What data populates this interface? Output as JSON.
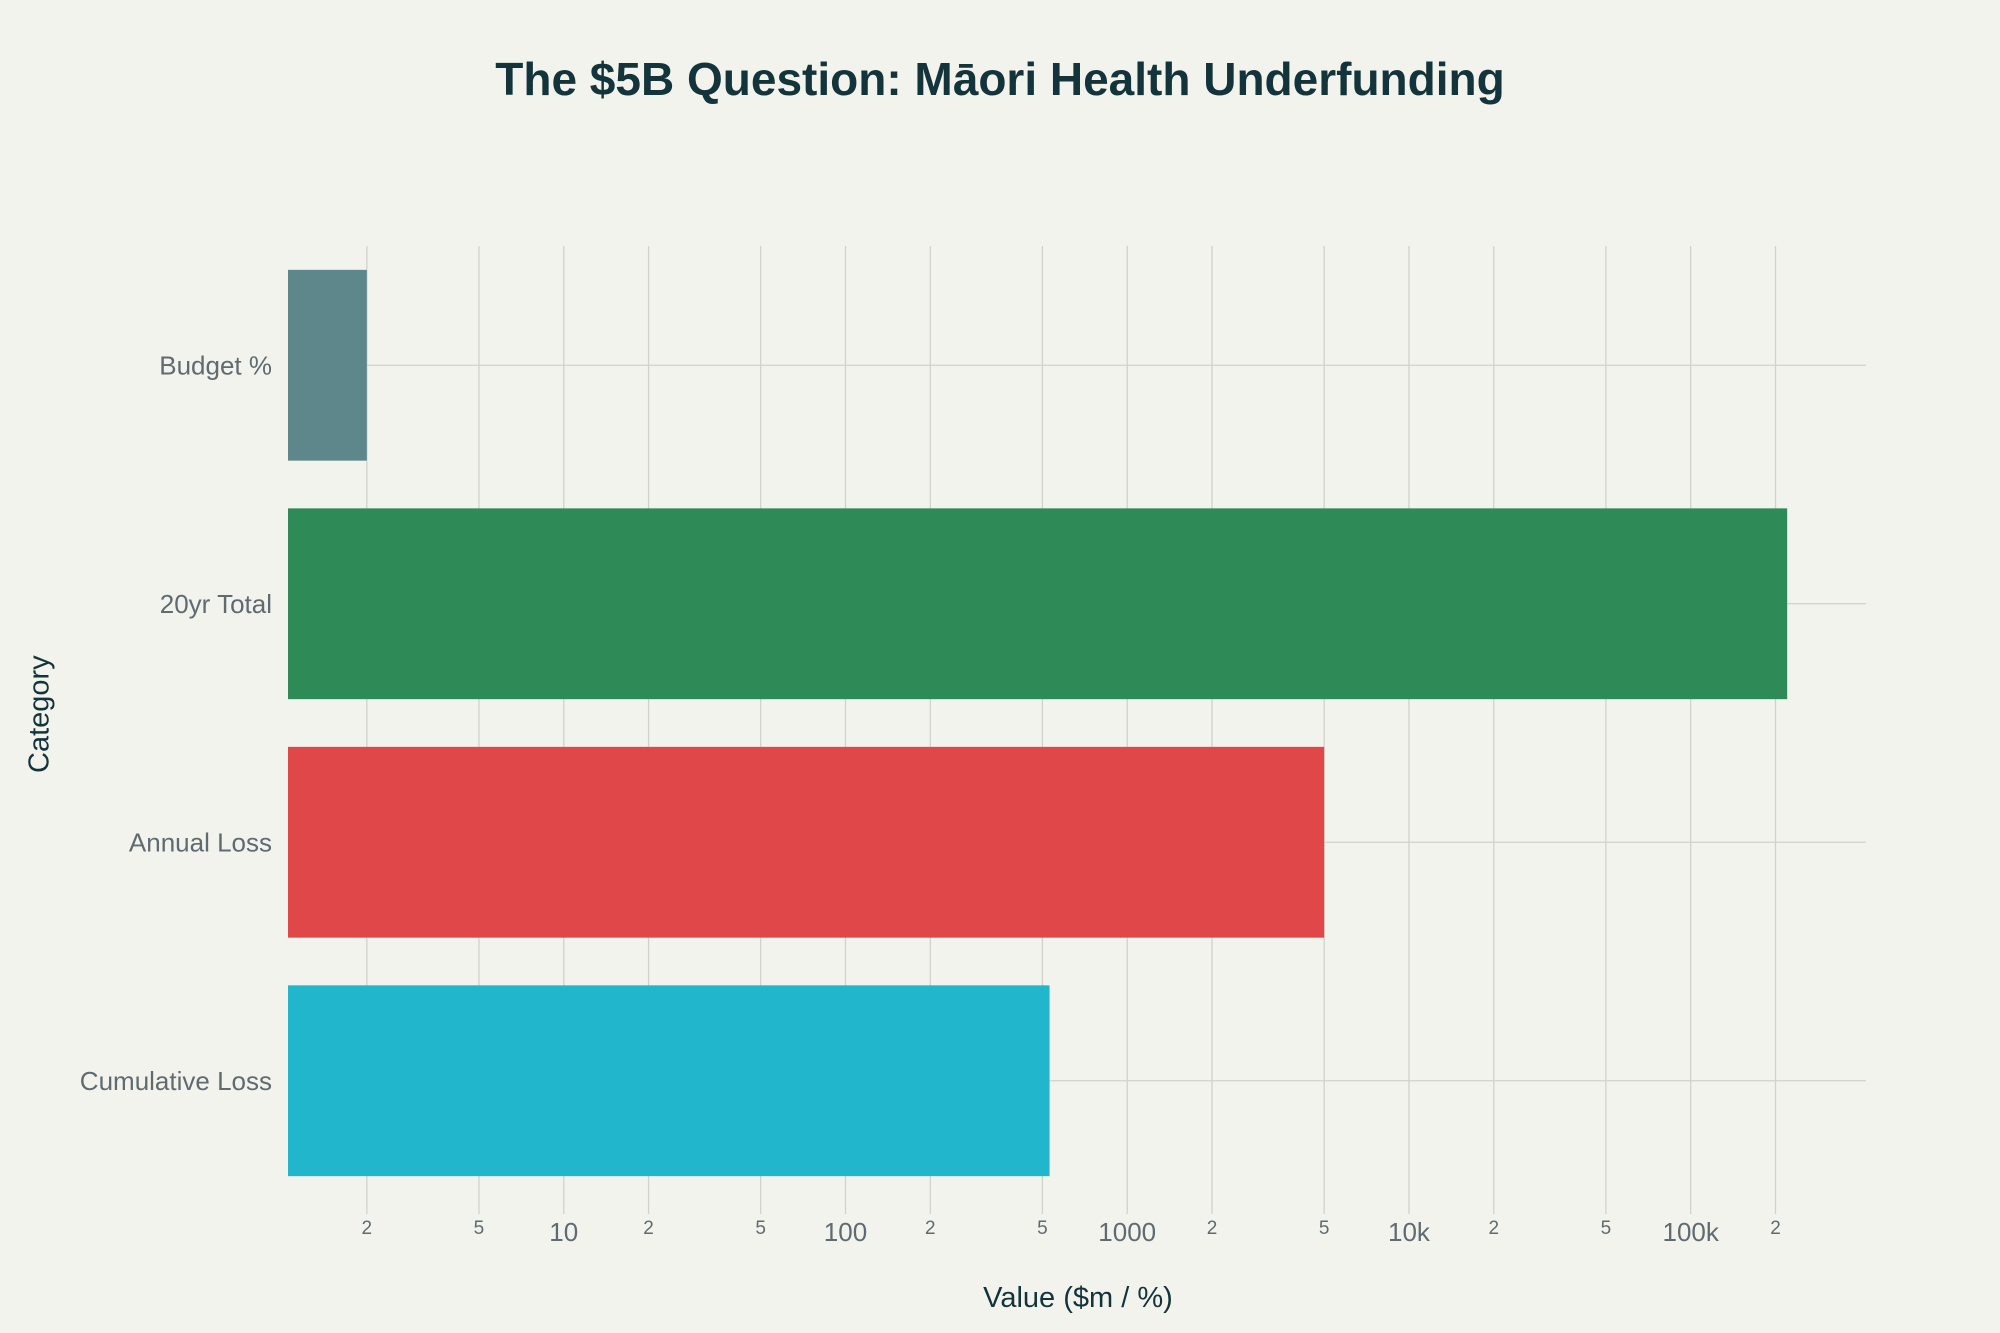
{
  "chart_data": {
    "type": "bar",
    "orientation": "horizontal",
    "title": "The $5B Question: Māori Health Underfunding",
    "xlabel": "Value ($m / %)",
    "ylabel": "Category",
    "x_scale": "log",
    "xlim": [
      1.05,
      419000
    ],
    "grid": true,
    "legend": "none",
    "categories": [
      "Cumulative Loss",
      "Annual Loss",
      "20yr Total",
      "Budget %"
    ],
    "values": [
      530,
      5000,
      220000,
      2
    ],
    "colors": [
      "#21B6CB",
      "#DF4748",
      "#2E8B57",
      "#5E878C"
    ],
    "x_ticks": [
      {
        "value": 2,
        "label": "2"
      },
      {
        "value": 5,
        "label": "5"
      },
      {
        "value": 10,
        "label": "10"
      },
      {
        "value": 20,
        "label": "2"
      },
      {
        "value": 50,
        "label": "5"
      },
      {
        "value": 100,
        "label": "100"
      },
      {
        "value": 200,
        "label": "2"
      },
      {
        "value": 500,
        "label": "5"
      },
      {
        "value": 1000,
        "label": "1000"
      },
      {
        "value": 2000,
        "label": "2"
      },
      {
        "value": 5000,
        "label": "5"
      },
      {
        "value": 10000,
        "label": "10k"
      },
      {
        "value": 20000,
        "label": "2"
      },
      {
        "value": 50000,
        "label": "5"
      },
      {
        "value": 100000,
        "label": "100k"
      },
      {
        "value": 200000,
        "label": "2"
      }
    ]
  }
}
